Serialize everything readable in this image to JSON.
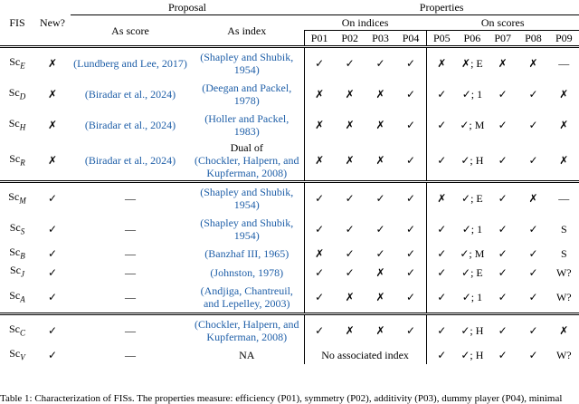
{
  "header": {
    "fis": "FIS",
    "new": "New?",
    "proposal": "Proposal",
    "properties": "Properties",
    "as_score": "As score",
    "as_index": "As index",
    "on_indices": "On indices",
    "on_scores": "On scores",
    "props": [
      "P01",
      "P02",
      "P03",
      "P04",
      "P05",
      "P06",
      "P07",
      "P08",
      "P09"
    ]
  },
  "groups": [
    [
      {
        "fis": "Sc",
        "sub": "E",
        "new": "✗",
        "score": "(Lundberg and Lee, 2017)",
        "index": "(Shapley and Shubik, 1954)",
        "props": [
          "✓",
          "✓",
          "✓",
          "✓",
          "✗",
          "✗; E",
          "✗",
          "✗",
          "—"
        ]
      },
      {
        "fis": "Sc",
        "sub": "D",
        "new": "✗",
        "score": "(Biradar et al., 2024)",
        "index": "(Deegan and Packel, 1978)",
        "props": [
          "✗",
          "✗",
          "✗",
          "✓",
          "✓",
          "✓; 1",
          "✓",
          "✓",
          "✗"
        ]
      },
      {
        "fis": "Sc",
        "sub": "H",
        "new": "✗",
        "score": "(Biradar et al., 2024)",
        "index": "(Holler and Packel, 1983)",
        "props": [
          "✗",
          "✗",
          "✗",
          "✓",
          "✓",
          "✓; M",
          "✓",
          "✓",
          "✗"
        ]
      },
      {
        "fis": "Sc",
        "sub": "R",
        "new": "✗",
        "score": "(Biradar et al., 2024)",
        "index_prefix": "Dual of",
        "index": "(Chockler, Halpern, and Kupferman, 2008)",
        "props": [
          "✗",
          "✗",
          "✗",
          "✓",
          "✓",
          "✓; H",
          "✓",
          "✓",
          "✗"
        ]
      }
    ],
    [
      {
        "fis": "Sc",
        "sub": "M",
        "new": "✓",
        "score": "—",
        "index": "(Shapley and Shubik, 1954)",
        "props": [
          "✓",
          "✓",
          "✓",
          "✓",
          "✗",
          "✓; E",
          "✓",
          "✗",
          "—"
        ]
      },
      {
        "fis": "Sc",
        "sub": "S",
        "new": "✓",
        "score": "—",
        "index": "(Shapley and Shubik, 1954)",
        "props": [
          "✓",
          "✓",
          "✓",
          "✓",
          "✓",
          "✓; 1",
          "✓",
          "✓",
          "S"
        ]
      },
      {
        "fis": "Sc",
        "sub": "B",
        "new": "✓",
        "score": "—",
        "index": "(Banzhaf III, 1965)",
        "props": [
          "✗",
          "✓",
          "✓",
          "✓",
          "✓",
          "✓; M",
          "✓",
          "✓",
          "S"
        ]
      },
      {
        "fis": "Sc",
        "sub": "J",
        "new": "✓",
        "score": "—",
        "index": "(Johnston, 1978)",
        "props": [
          "✓",
          "✓",
          "✗",
          "✓",
          "✓",
          "✓; E",
          "✓",
          "✓",
          "W?"
        ]
      },
      {
        "fis": "Sc",
        "sub": "A",
        "new": "✓",
        "score": "—",
        "index": "(Andjiga, Chantreuil, and Lepelley, 2003)",
        "props": [
          "✓",
          "✗",
          "✗",
          "✓",
          "✓",
          "✓; 1",
          "✓",
          "✓",
          "W?"
        ]
      }
    ],
    [
      {
        "fis": "Sc",
        "sub": "C",
        "new": "✓",
        "score": "—",
        "index": "(Chockler, Halpern, and Kupferman, 2008)",
        "props": [
          "✓",
          "✗",
          "✗",
          "✓",
          "✓",
          "✓; H",
          "✓",
          "✓",
          "✗"
        ]
      },
      {
        "fis": "Sc",
        "sub": "V",
        "new": "✓",
        "score": "—",
        "index_plain": "NA",
        "props_text": "No associated index",
        "props": [
          "✓",
          "✓; H",
          "✓",
          "✓",
          "W?"
        ]
      }
    ]
  ],
  "caption": "Table 1: Characterization of FISs. The properties measure: efficiency (P01), symmetry (P02), additivity (P03), dummy player (P04), minimal"
}
